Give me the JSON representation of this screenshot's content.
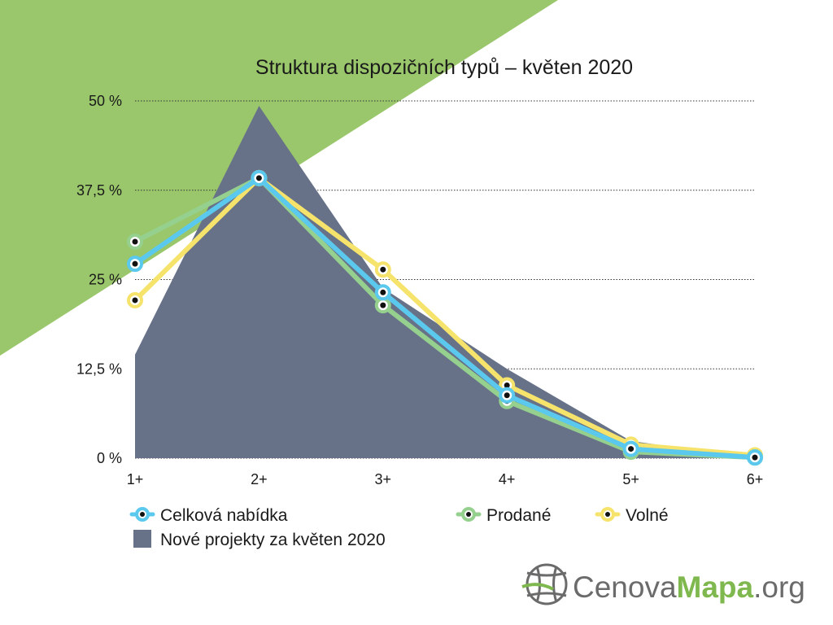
{
  "colors": {
    "background_accent": "#9ac76b",
    "area": "#677288",
    "celkova": "#5bc8ee",
    "prodane": "#95d08e",
    "volne": "#f6e36b",
    "marker_dot": "#111111",
    "grid": "#333333",
    "logo_gray": "#6b6b6b",
    "logo_green": "#7fb84e"
  },
  "chart_data": {
    "type": "line",
    "title": "Struktura dispozičních typů – květen 2020",
    "categories": [
      "1+",
      "2+",
      "3+",
      "4+",
      "5+",
      "6+"
    ],
    "y_ticks": [
      "0 %",
      "12,5 %",
      "25 %",
      "37,5 %",
      "50 %"
    ],
    "ylim": [
      0,
      50
    ],
    "grid": "horizontal dotted",
    "series": [
      {
        "name": "Celková nabídka",
        "values": [
          27.2,
          39.2,
          23.2,
          8.8,
          1.3,
          0.1
        ],
        "color": "#5bc8ee"
      },
      {
        "name": "Prodané",
        "values": [
          30.3,
          39.2,
          21.4,
          8.0,
          0.9,
          0.1
        ],
        "color": "#95d08e"
      },
      {
        "name": "Volné",
        "values": [
          22.1,
          39.2,
          26.4,
          10.2,
          1.9,
          0.4
        ],
        "color": "#f6e36b"
      }
    ],
    "area_series": {
      "name": "Nové projekty za květen 2020",
      "values": [
        14.5,
        49.3,
        23.8,
        12.5,
        2.4,
        0.0
      ],
      "color": "#677288"
    },
    "legend": {
      "items": [
        {
          "label": "Celková nabídka",
          "kind": "line",
          "color": "#5bc8ee"
        },
        {
          "label": "Prodané",
          "kind": "line",
          "color": "#95d08e"
        },
        {
          "label": "Volné",
          "kind": "line",
          "color": "#f6e36b"
        },
        {
          "label": "Nové projekty za květen 2020",
          "kind": "area",
          "color": "#677288"
        }
      ],
      "placement": "bottom"
    }
  },
  "logo": {
    "part1": "Cenova",
    "part2": "Mapa",
    "part3": ".org",
    "icon": "globe-grid-icon"
  }
}
